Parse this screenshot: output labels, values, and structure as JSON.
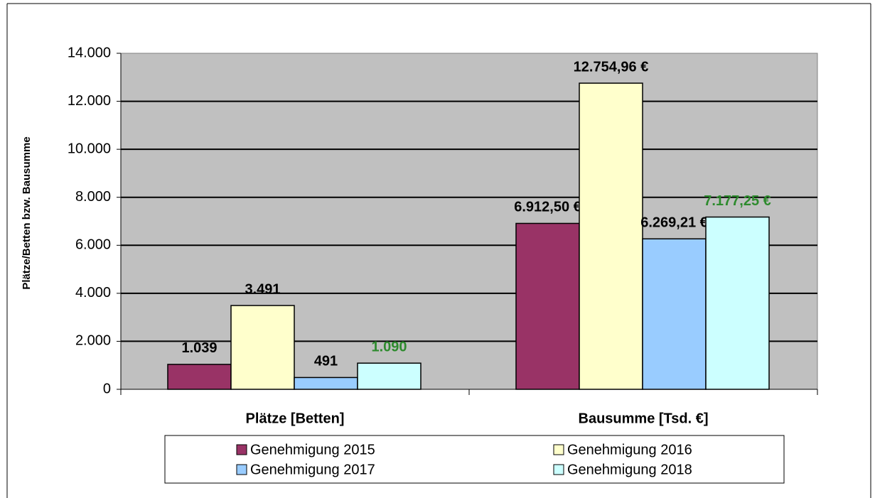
{
  "chart_data": {
    "type": "bar",
    "y_label": "Plätze/Betten  bzw. Bausumme",
    "categories": [
      "Plätze [Betten]",
      "Bausumme [Tsd. €]"
    ],
    "series": [
      {
        "name": "Genehmigung 2015",
        "color": "#993366",
        "label_color": "#000000",
        "values": [
          1039,
          6912.5
        ],
        "value_labels": [
          "1.039",
          "6.912,50 €"
        ]
      },
      {
        "name": "Genehmigung 2016",
        "color": "#ffffcc",
        "label_color": "#000000",
        "values": [
          3491,
          12754.96
        ],
        "value_labels": [
          "3.491",
          "12.754,96 €"
        ]
      },
      {
        "name": "Genehmigung 2017",
        "color": "#99ccff",
        "label_color": "#000000",
        "values": [
          491,
          6269.21
        ],
        "value_labels": [
          "491",
          "6.269,21 €"
        ]
      },
      {
        "name": "Genehmigung 2018",
        "color": "#ccffff",
        "label_color": "#2e8b2e",
        "values": [
          1090,
          7177.25
        ],
        "value_labels": [
          "1.090",
          "7.177,25 €"
        ]
      }
    ],
    "ylim": [
      0,
      14000
    ],
    "yticks": [
      0,
      {
        "value": 2000,
        "label": "2.000"
      },
      {
        "value": 4000,
        "label": "4.000"
      },
      {
        "value": 6000,
        "label": "6.000"
      },
      {
        "value": 8000,
        "label": "8.000"
      },
      {
        "value": 10000,
        "label": "10.000"
      },
      {
        "value": 12000,
        "label": "12.000"
      },
      {
        "value": 14000,
        "label": "14.000"
      }
    ],
    "grid": true,
    "plot_background": "#c0c0c0"
  }
}
